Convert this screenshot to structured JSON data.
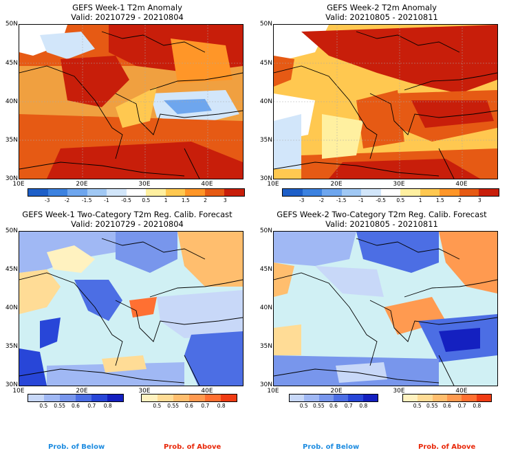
{
  "panels": {
    "p1": {
      "title": "GEFS Week-1 T2m Anomaly",
      "valid": "Valid: 20210729 - 20210804"
    },
    "p2": {
      "title": "GEFS Week-2 T2m Anomaly",
      "valid": "Valid: 20210805 - 20210811"
    },
    "p3": {
      "title": "GEFS Week-1 Two-Category T2m Reg. Calib. Forecast",
      "valid": "Valid: 20210729 - 20210804"
    },
    "p4": {
      "title": "GEFS Week-2 Two-Category T2m Reg. Calib. Forecast",
      "valid": "Valid: 20210805 - 20210811"
    }
  },
  "lat_labels": [
    "50N",
    "45N",
    "40N",
    "35N",
    "30N"
  ],
  "lon_labels": [
    "10E",
    "20E",
    "30E",
    "40E"
  ],
  "anomaly_scale": {
    "ticks": [
      "-3",
      "-2",
      "-1.5",
      "-1",
      "-0.5",
      "0.5",
      "1",
      "1.5",
      "2",
      "3"
    ],
    "colors": [
      "#1e5fc8",
      "#3c82e0",
      "#6ea6ee",
      "#a0c8f4",
      "#d2e6fa",
      "#ffffff",
      "#fff0a0",
      "#ffc850",
      "#ff9628",
      "#e65a14",
      "#c81e0a"
    ]
  },
  "prob_below_scale": {
    "ticks": [
      "0.5",
      "0.55",
      "0.6",
      "0.7",
      "0.8"
    ],
    "colors": [
      "#c8d8f8",
      "#a0b8f4",
      "#7896ec",
      "#4c6ee4",
      "#2846d8",
      "#1420c0"
    ]
  },
  "prob_above_scale": {
    "ticks": [
      "0.5",
      "0.55",
      "0.6",
      "0.7",
      "0.8"
    ],
    "colors": [
      "#fff2c0",
      "#ffdc96",
      "#ffbe6e",
      "#ff9a50",
      "#ff7032",
      "#f03c14"
    ]
  },
  "footer": {
    "below": "Prob. of Below",
    "above": "Prob. of Above"
  },
  "colors": {
    "sea_prob": "#d0f0f4",
    "above_text": "#e8280a",
    "below_text": "#1e8ce0"
  }
}
